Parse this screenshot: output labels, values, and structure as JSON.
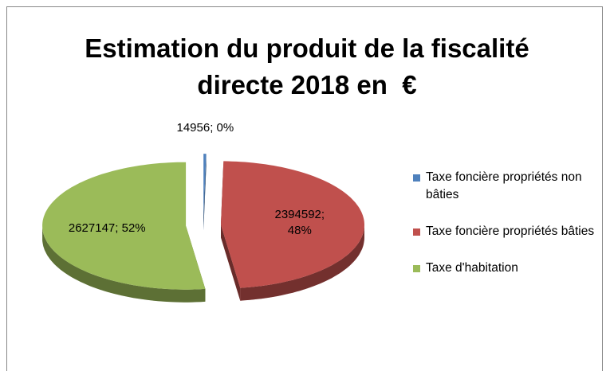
{
  "chart_data": {
    "type": "pie",
    "title": "Estimation du produit de la fiscalité directe 2018 en  €",
    "categories": [
      "Taxe foncière propriétés non bâties",
      "Taxe foncière propriétés bâties",
      "Taxe d'habitation"
    ],
    "values": [
      14956,
      2394592,
      2627147
    ],
    "value_labels": [
      "14956; 0%",
      "2394592; 48%",
      "2627147; 52%"
    ],
    "colors": [
      "#4f81bd",
      "#c0504d",
      "#9bbb59"
    ],
    "legend": "right"
  }
}
